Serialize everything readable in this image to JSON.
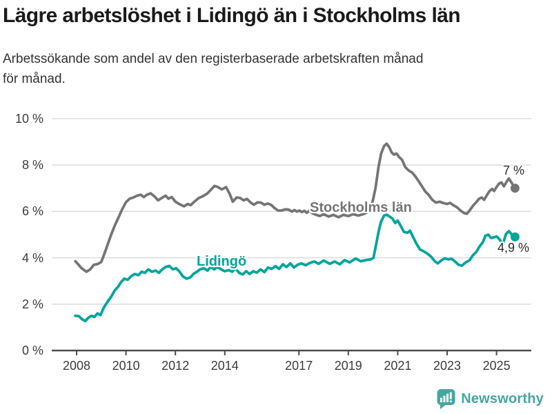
{
  "header": {
    "title": "Lägre arbetslöshet i Lidingö än i Stockholms län",
    "subtitle": "Arbetssökande som andel av den registerbaserade arbetskraften månad\nför månad."
  },
  "colors": {
    "title": "#1a1a1a",
    "text": "#333333",
    "stockholm": "#757575",
    "lidingo": "#00a49b",
    "grid": "#d8d8d8",
    "axis": "#4d4d4d",
    "logo": "#42a79f"
  },
  "footer": {
    "brand": "Newsworthy",
    "logo_icon": "bar-chart-speech-bubble-icon"
  },
  "chart_data": {
    "type": "line",
    "title": "Lägre arbetslöshet i Lidingö än i Stockholms län",
    "xlabel": "",
    "ylabel": "",
    "x_unit": "decimal_year",
    "y_unit": "percent",
    "ylim": [
      0,
      10
    ],
    "xlim": [
      2007,
      2026.4
    ],
    "grid": "horizontal",
    "legend_position": "inline-labels",
    "ytick_values": [
      0,
      2,
      4,
      6,
      8,
      10
    ],
    "ytick_labels": [
      "0 %",
      "2 %",
      "4 %",
      "6 %",
      "8 %",
      "10 %"
    ],
    "xtick_values": [
      2008,
      2010,
      2012,
      2014,
      2017,
      2019,
      2021,
      2023,
      2025
    ],
    "xtick_labels": [
      "2008",
      "2010",
      "2012",
      "2014",
      "2017",
      "2019",
      "2021",
      "2023",
      "2025"
    ],
    "series": [
      {
        "name": "Stockholms län",
        "color_key": "stockholm",
        "end_label": "7 %",
        "end_value": 7.0,
        "points": [
          [
            2007.95,
            3.85
          ],
          [
            2008.08,
            3.7
          ],
          [
            2008.2,
            3.55
          ],
          [
            2008.4,
            3.4
          ],
          [
            2008.55,
            3.5
          ],
          [
            2008.7,
            3.7
          ],
          [
            2008.85,
            3.73
          ],
          [
            2009.0,
            3.82
          ],
          [
            2009.1,
            4.1
          ],
          [
            2009.25,
            4.55
          ],
          [
            2009.4,
            5.0
          ],
          [
            2009.55,
            5.4
          ],
          [
            2009.7,
            5.75
          ],
          [
            2009.85,
            6.1
          ],
          [
            2010.0,
            6.4
          ],
          [
            2010.15,
            6.55
          ],
          [
            2010.3,
            6.6
          ],
          [
            2010.45,
            6.68
          ],
          [
            2010.6,
            6.72
          ],
          [
            2010.72,
            6.62
          ],
          [
            2010.85,
            6.72
          ],
          [
            2011.0,
            6.78
          ],
          [
            2011.15,
            6.65
          ],
          [
            2011.3,
            6.48
          ],
          [
            2011.45,
            6.58
          ],
          [
            2011.6,
            6.68
          ],
          [
            2011.72,
            6.55
          ],
          [
            2011.85,
            6.62
          ],
          [
            2012.0,
            6.42
          ],
          [
            2012.15,
            6.32
          ],
          [
            2012.35,
            6.22
          ],
          [
            2012.5,
            6.32
          ],
          [
            2012.62,
            6.27
          ],
          [
            2012.8,
            6.45
          ],
          [
            2012.95,
            6.58
          ],
          [
            2013.1,
            6.65
          ],
          [
            2013.3,
            6.78
          ],
          [
            2013.45,
            6.95
          ],
          [
            2013.58,
            7.1
          ],
          [
            2013.72,
            7.05
          ],
          [
            2013.88,
            6.95
          ],
          [
            2014.05,
            7.05
          ],
          [
            2014.2,
            6.75
          ],
          [
            2014.32,
            6.42
          ],
          [
            2014.48,
            6.6
          ],
          [
            2014.62,
            6.58
          ],
          [
            2014.76,
            6.48
          ],
          [
            2014.9,
            6.54
          ],
          [
            2015.04,
            6.39
          ],
          [
            2015.18,
            6.29
          ],
          [
            2015.32,
            6.39
          ],
          [
            2015.46,
            6.38
          ],
          [
            2015.6,
            6.29
          ],
          [
            2015.74,
            6.34
          ],
          [
            2015.88,
            6.28
          ],
          [
            2016.02,
            6.14
          ],
          [
            2016.16,
            6.04
          ],
          [
            2016.3,
            6.04
          ],
          [
            2016.45,
            6.09
          ],
          [
            2016.58,
            6.08
          ],
          [
            2016.72,
            5.99
          ],
          [
            2016.82,
            6.06
          ],
          [
            2016.92,
            5.99
          ],
          [
            2017.02,
            6.04
          ],
          [
            2017.12,
            5.97
          ],
          [
            2017.22,
            6.03
          ],
          [
            2017.32,
            5.94
          ],
          [
            2017.42,
            6.03
          ],
          [
            2017.55,
            5.92
          ],
          [
            2017.7,
            5.85
          ],
          [
            2017.85,
            5.8
          ],
          [
            2018.0,
            5.88
          ],
          [
            2018.2,
            5.78
          ],
          [
            2018.4,
            5.85
          ],
          [
            2018.6,
            5.75
          ],
          [
            2018.8,
            5.85
          ],
          [
            2019.0,
            5.8
          ],
          [
            2019.2,
            5.88
          ],
          [
            2019.4,
            5.82
          ],
          [
            2019.6,
            5.88
          ],
          [
            2019.75,
            5.95
          ],
          [
            2019.9,
            6.15
          ],
          [
            2020.0,
            6.5
          ],
          [
            2020.1,
            7.0
          ],
          [
            2020.22,
            7.9
          ],
          [
            2020.33,
            8.5
          ],
          [
            2020.45,
            8.82
          ],
          [
            2020.55,
            8.92
          ],
          [
            2020.65,
            8.78
          ],
          [
            2020.75,
            8.55
          ],
          [
            2020.85,
            8.45
          ],
          [
            2020.95,
            8.5
          ],
          [
            2021.05,
            8.35
          ],
          [
            2021.18,
            8.22
          ],
          [
            2021.3,
            7.92
          ],
          [
            2021.45,
            7.76
          ],
          [
            2021.58,
            7.68
          ],
          [
            2021.72,
            7.5
          ],
          [
            2021.85,
            7.3
          ],
          [
            2022.0,
            7.05
          ],
          [
            2022.12,
            6.85
          ],
          [
            2022.25,
            6.72
          ],
          [
            2022.4,
            6.5
          ],
          [
            2022.55,
            6.38
          ],
          [
            2022.7,
            6.42
          ],
          [
            2022.85,
            6.36
          ],
          [
            2023.0,
            6.32
          ],
          [
            2023.12,
            6.37
          ],
          [
            2023.25,
            6.27
          ],
          [
            2023.4,
            6.18
          ],
          [
            2023.55,
            6.03
          ],
          [
            2023.7,
            5.92
          ],
          [
            2023.8,
            5.9
          ],
          [
            2023.92,
            6.05
          ],
          [
            2024.05,
            6.25
          ],
          [
            2024.18,
            6.4
          ],
          [
            2024.3,
            6.55
          ],
          [
            2024.4,
            6.6
          ],
          [
            2024.5,
            6.5
          ],
          [
            2024.62,
            6.72
          ],
          [
            2024.72,
            6.88
          ],
          [
            2024.82,
            6.97
          ],
          [
            2024.9,
            6.88
          ],
          [
            2025.0,
            7.05
          ],
          [
            2025.1,
            7.2
          ],
          [
            2025.2,
            7.25
          ],
          [
            2025.3,
            7.08
          ],
          [
            2025.42,
            7.3
          ],
          [
            2025.5,
            7.42
          ],
          [
            2025.6,
            7.25
          ],
          [
            2025.75,
            7.0
          ]
        ]
      },
      {
        "name": "Lidingö",
        "color_key": "lidingo",
        "end_label": "4,9 %",
        "end_value": 4.9,
        "points": [
          [
            2007.95,
            1.5
          ],
          [
            2008.1,
            1.48
          ],
          [
            2008.22,
            1.35
          ],
          [
            2008.35,
            1.27
          ],
          [
            2008.48,
            1.42
          ],
          [
            2008.6,
            1.5
          ],
          [
            2008.72,
            1.45
          ],
          [
            2008.85,
            1.6
          ],
          [
            2008.97,
            1.53
          ],
          [
            2009.1,
            1.85
          ],
          [
            2009.25,
            2.1
          ],
          [
            2009.4,
            2.32
          ],
          [
            2009.55,
            2.6
          ],
          [
            2009.68,
            2.75
          ],
          [
            2009.8,
            2.95
          ],
          [
            2009.93,
            3.1
          ],
          [
            2010.07,
            3.05
          ],
          [
            2010.2,
            3.2
          ],
          [
            2010.35,
            3.3
          ],
          [
            2010.5,
            3.25
          ],
          [
            2010.63,
            3.4
          ],
          [
            2010.77,
            3.35
          ],
          [
            2010.9,
            3.5
          ],
          [
            2011.05,
            3.4
          ],
          [
            2011.2,
            3.45
          ],
          [
            2011.33,
            3.35
          ],
          [
            2011.47,
            3.5
          ],
          [
            2011.6,
            3.6
          ],
          [
            2011.75,
            3.65
          ],
          [
            2011.9,
            3.5
          ],
          [
            2012.03,
            3.55
          ],
          [
            2012.17,
            3.4
          ],
          [
            2012.3,
            3.2
          ],
          [
            2012.45,
            3.1
          ],
          [
            2012.6,
            3.15
          ],
          [
            2012.73,
            3.3
          ],
          [
            2012.87,
            3.4
          ],
          [
            2013.0,
            3.5
          ],
          [
            2013.15,
            3.55
          ],
          [
            2013.3,
            3.45
          ],
          [
            2013.43,
            3.6
          ],
          [
            2013.57,
            3.5
          ],
          [
            2013.7,
            3.6
          ],
          [
            2013.85,
            3.5
          ],
          [
            2014.0,
            3.42
          ],
          [
            2014.15,
            3.47
          ],
          [
            2014.3,
            3.4
          ],
          [
            2014.43,
            3.55
          ],
          [
            2014.58,
            3.35
          ],
          [
            2014.72,
            3.28
          ],
          [
            2014.87,
            3.42
          ],
          [
            2015.0,
            3.3
          ],
          [
            2015.15,
            3.42
          ],
          [
            2015.3,
            3.36
          ],
          [
            2015.45,
            3.5
          ],
          [
            2015.6,
            3.38
          ],
          [
            2015.75,
            3.58
          ],
          [
            2015.9,
            3.52
          ],
          [
            2016.05,
            3.64
          ],
          [
            2016.2,
            3.52
          ],
          [
            2016.35,
            3.72
          ],
          [
            2016.5,
            3.6
          ],
          [
            2016.65,
            3.76
          ],
          [
            2016.8,
            3.58
          ],
          [
            2016.95,
            3.7
          ],
          [
            2017.1,
            3.76
          ],
          [
            2017.28,
            3.68
          ],
          [
            2017.45,
            3.78
          ],
          [
            2017.62,
            3.84
          ],
          [
            2017.8,
            3.74
          ],
          [
            2018.0,
            3.88
          ],
          [
            2018.25,
            3.74
          ],
          [
            2018.45,
            3.84
          ],
          [
            2018.65,
            3.72
          ],
          [
            2018.85,
            3.9
          ],
          [
            2019.05,
            3.8
          ],
          [
            2019.3,
            3.97
          ],
          [
            2019.5,
            3.85
          ],
          [
            2019.7,
            3.9
          ],
          [
            2019.9,
            3.93
          ],
          [
            2020.02,
            4.0
          ],
          [
            2020.12,
            4.55
          ],
          [
            2020.22,
            5.1
          ],
          [
            2020.32,
            5.55
          ],
          [
            2020.45,
            5.82
          ],
          [
            2020.55,
            5.86
          ],
          [
            2020.67,
            5.78
          ],
          [
            2020.78,
            5.7
          ],
          [
            2020.9,
            5.5
          ],
          [
            2021.0,
            5.6
          ],
          [
            2021.12,
            5.38
          ],
          [
            2021.25,
            5.12
          ],
          [
            2021.4,
            5.08
          ],
          [
            2021.5,
            5.17
          ],
          [
            2021.62,
            4.9
          ],
          [
            2021.75,
            4.62
          ],
          [
            2021.9,
            4.36
          ],
          [
            2022.05,
            4.28
          ],
          [
            2022.2,
            4.18
          ],
          [
            2022.35,
            4.05
          ],
          [
            2022.5,
            3.85
          ],
          [
            2022.62,
            3.76
          ],
          [
            2022.76,
            3.88
          ],
          [
            2022.9,
            3.98
          ],
          [
            2023.05,
            3.93
          ],
          [
            2023.18,
            3.96
          ],
          [
            2023.32,
            3.84
          ],
          [
            2023.46,
            3.7
          ],
          [
            2023.6,
            3.66
          ],
          [
            2023.75,
            3.8
          ],
          [
            2023.9,
            3.88
          ],
          [
            2024.05,
            4.12
          ],
          [
            2024.18,
            4.25
          ],
          [
            2024.32,
            4.5
          ],
          [
            2024.45,
            4.68
          ],
          [
            2024.55,
            4.95
          ],
          [
            2024.67,
            5.0
          ],
          [
            2024.78,
            4.85
          ],
          [
            2024.9,
            4.88
          ],
          [
            2025.0,
            4.92
          ],
          [
            2025.12,
            4.8
          ],
          [
            2025.25,
            4.55
          ],
          [
            2025.38,
            5.02
          ],
          [
            2025.5,
            5.15
          ],
          [
            2025.62,
            5.0
          ],
          [
            2025.75,
            4.9
          ]
        ]
      }
    ]
  }
}
